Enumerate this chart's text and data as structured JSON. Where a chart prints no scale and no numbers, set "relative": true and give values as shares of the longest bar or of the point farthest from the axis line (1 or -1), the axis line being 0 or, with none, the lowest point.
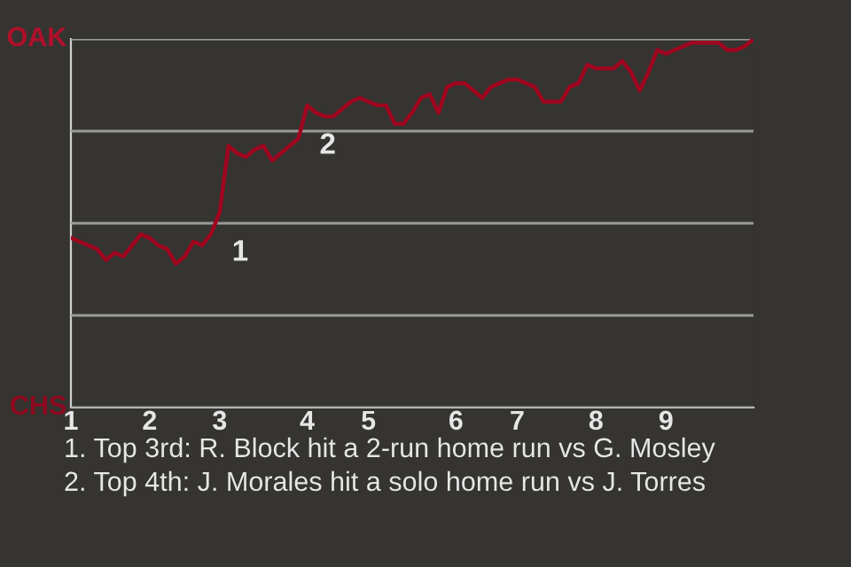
{
  "chart_data": {
    "type": "line",
    "categories": [
      "1",
      null,
      null,
      null,
      null,
      null,
      null,
      null,
      null,
      "2",
      null,
      null,
      null,
      null,
      null,
      null,
      null,
      "3",
      null,
      null,
      null,
      null,
      null,
      null,
      null,
      null,
      null,
      "4",
      null,
      null,
      null,
      null,
      null,
      null,
      "5",
      null,
      null,
      null,
      null,
      null,
      null,
      null,
      null,
      null,
      "6",
      null,
      null,
      null,
      null,
      null,
      null,
      "7",
      null,
      null,
      null,
      null,
      null,
      null,
      null,
      null,
      "8",
      null,
      null,
      null,
      null,
      null,
      null,
      null,
      "9",
      null,
      null,
      null,
      null,
      null,
      null,
      null,
      null,
      null,
      null
    ],
    "relative": true,
    "series": [
      {
        "color": "#a0061f",
        "values": [
          0.46,
          0.45,
          0.44,
          0.43,
          0.4,
          0.42,
          0.41,
          0.44,
          0.47,
          0.46,
          0.44,
          0.43,
          0.39,
          0.41,
          0.45,
          0.44,
          0.47,
          0.53,
          0.71,
          0.69,
          0.68,
          0.7,
          0.71,
          0.67,
          0.69,
          0.71,
          0.73,
          0.82,
          0.8,
          0.79,
          0.79,
          0.81,
          0.83,
          0.84,
          0.83,
          0.82,
          0.82,
          0.77,
          0.77,
          0.8,
          0.84,
          0.85,
          0.8,
          0.87,
          0.88,
          0.88,
          0.86,
          0.84,
          0.87,
          0.88,
          0.89,
          0.89,
          0.88,
          0.87,
          0.83,
          0.83,
          0.83,
          0.87,
          0.88,
          0.93,
          0.92,
          0.92,
          0.92,
          0.94,
          0.91,
          0.86,
          0.91,
          0.97,
          0.96,
          0.97,
          0.98,
          0.99,
          0.99,
          0.99,
          0.99,
          0.97,
          0.97,
          0.98,
          1.0
        ]
      }
    ],
    "grid": "y",
    "marker": "none",
    "line_style": "solid",
    "annotations": [
      {
        "text": "1",
        "x": "3",
        "y": 0.53
      },
      {
        "text": "2",
        "x": "4",
        "y": 0.82
      },
      "OAK",
      "CHS",
      "1. Top 3rd: R. Block hit a 2-run home run vs G. Mosley",
      "2. Top 4th: J. Morales hit a solo home run vs J. Torres"
    ]
  }
}
